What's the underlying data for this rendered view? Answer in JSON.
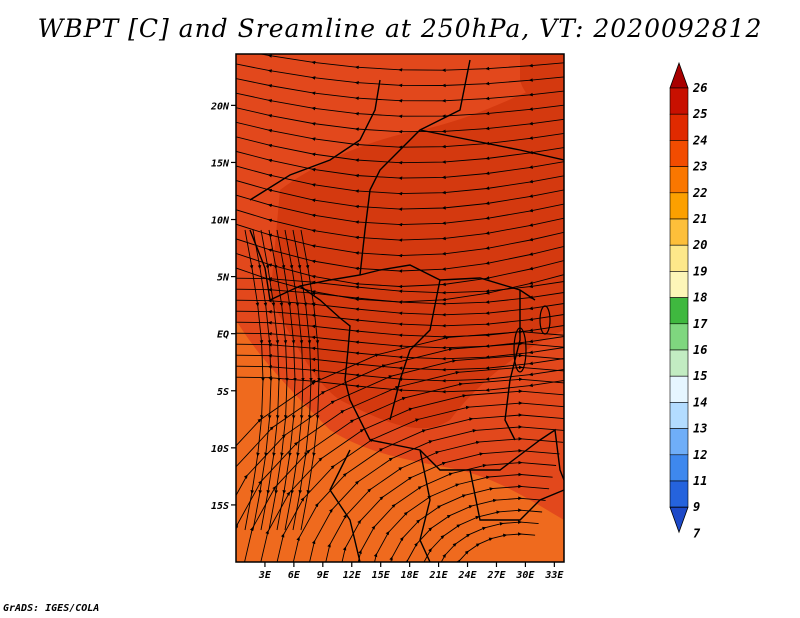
{
  "title": "WBPT [C] and Sreamline at 250hPa, VT: 2020092812",
  "credit": "GrADS: IGES/COLA",
  "map": {
    "lat_labels": [
      "20N",
      "15N",
      "10N",
      "5N",
      "EQ",
      "5S",
      "10S",
      "15S"
    ],
    "lon_labels": [
      "3E",
      "6E",
      "9E",
      "12E",
      "15E",
      "18E",
      "21E",
      "24E",
      "27E",
      "30E",
      "33E"
    ],
    "lon_range": [
      0,
      34
    ],
    "lat_range": [
      -20,
      24.5
    ]
  },
  "colorbar": {
    "labels": [
      "26",
      "25",
      "24",
      "23",
      "22",
      "21",
      "20",
      "19",
      "18",
      "17",
      "16",
      "15",
      "14",
      "13",
      "12",
      "11",
      "9",
      "7"
    ],
    "colors": [
      "#a80000",
      "#c81000",
      "#e02a00",
      "#f24c00",
      "#fa7700",
      "#fca000",
      "#fdbf3a",
      "#fde88a",
      "#fdf6b8",
      "#3fb83f",
      "#7fd77f",
      "#c2ecc2",
      "#e6f6ff",
      "#b3dcff",
      "#6faef8",
      "#3e88ee",
      "#2563dd",
      "#1d49c8"
    ]
  },
  "field_colors": {
    "dominant": "#e2481c",
    "darker": "#d4390f",
    "lighter": "#ef6a1e"
  }
}
